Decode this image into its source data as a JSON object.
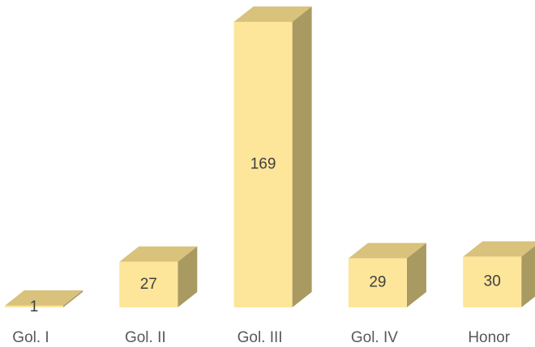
{
  "chart_data": {
    "type": "bar3d",
    "categories": [
      "Gol. I",
      "Gol. II",
      "Gol. III",
      "Gol. IV",
      "Honor"
    ],
    "values": [
      1,
      27,
      169,
      29,
      30
    ],
    "color": "#fde59a"
  }
}
